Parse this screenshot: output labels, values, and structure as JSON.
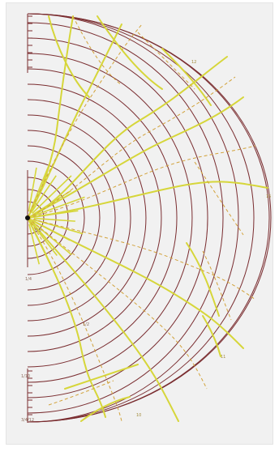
{
  "figure": {
    "colors": {
      "background": "#f1f1f1",
      "arc": "#7a2d30",
      "contour_solid": "#d6d63a",
      "contour_dashed": "#d2a23a"
    },
    "labels": {
      "top_right": "12",
      "right_mid": "15",
      "right_lower": "11",
      "left_top": "0",
      "left_a": "0.5",
      "left_b": "1/4",
      "left_c": "1/2",
      "left_d": "1/2",
      "bottom_left_a": "1/10",
      "bottom_left_b": "3/4/12",
      "bottom_mid": "10"
    },
    "marker": {
      "name": "source-point"
    }
  }
}
